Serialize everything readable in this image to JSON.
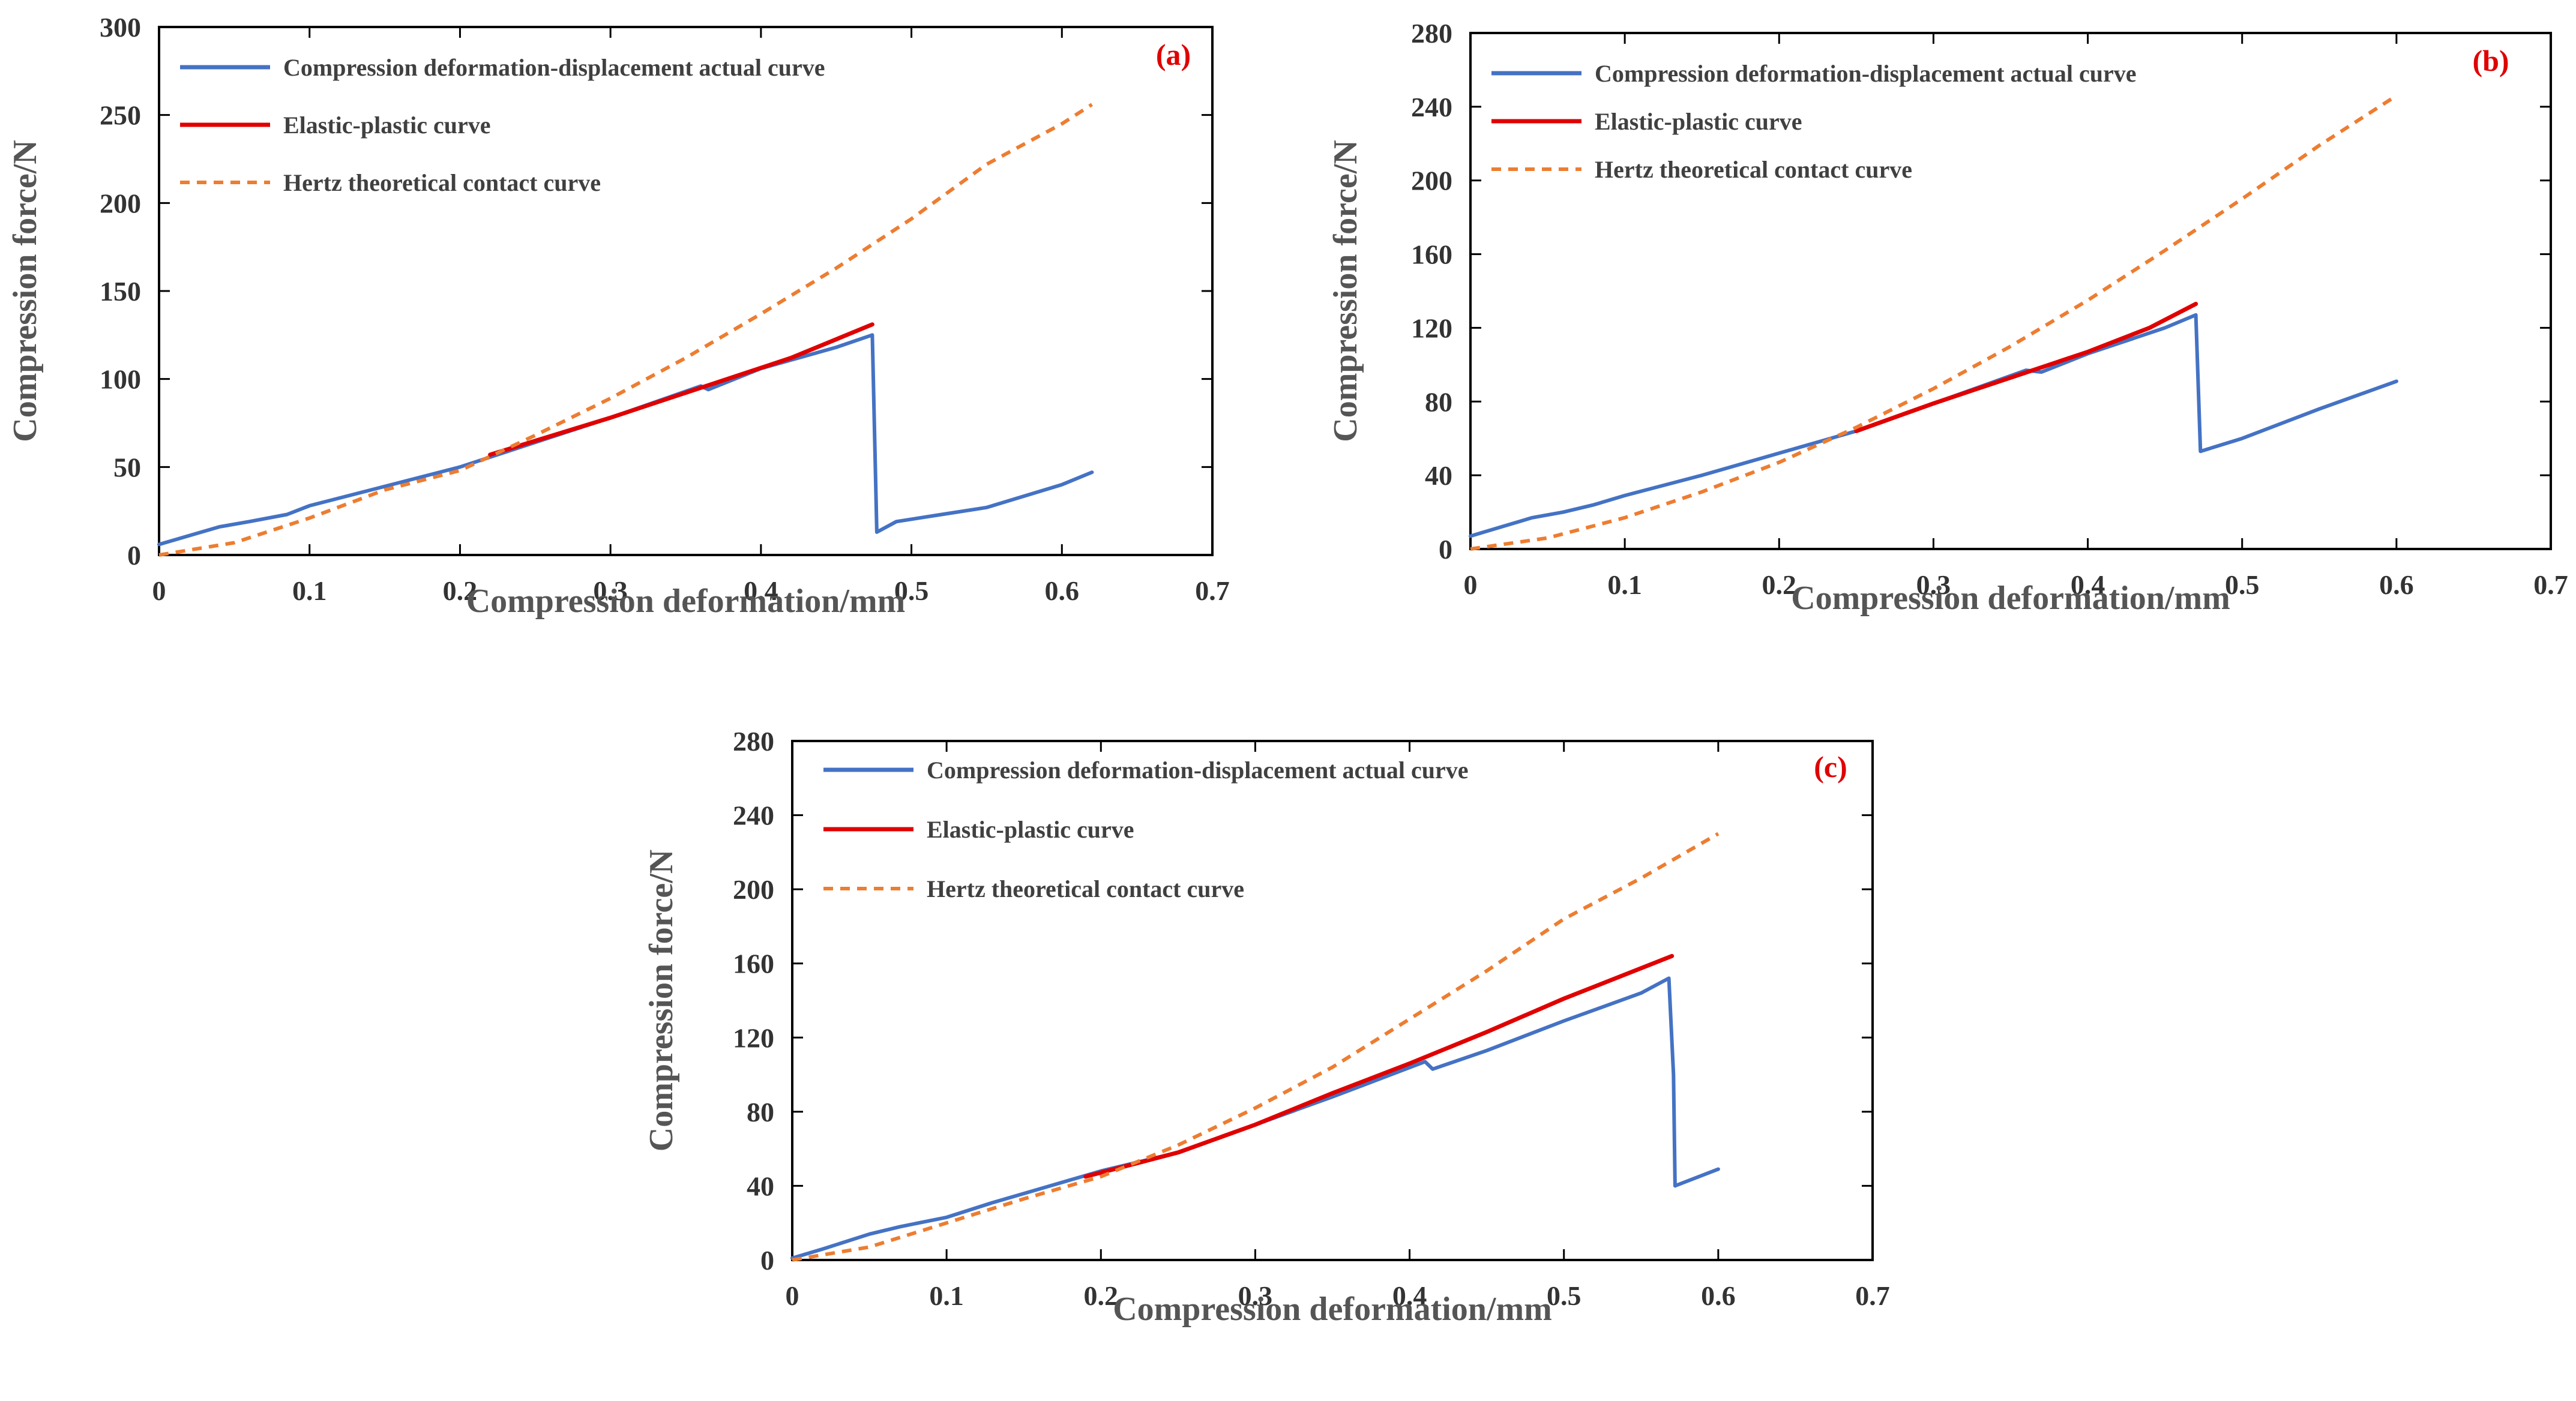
{
  "colors": {
    "actual": "#4472c4",
    "elastic_plastic": "#e00000",
    "hertz": "#ed7d31",
    "panel_label": "#e00000"
  },
  "chart_data": [
    {
      "type": "line",
      "panel": "(a)",
      "xlabel": "Compression deformation/mm",
      "ylabel": "Compression force/N",
      "xlim": [
        0,
        0.7
      ],
      "ylim": [
        0,
        300
      ],
      "xticks": [
        "0",
        "0.1",
        "0.2",
        "0.3",
        "0.4",
        "0.5",
        "0.6",
        "0.7"
      ],
      "yticks": [
        "0",
        "50",
        "100",
        "150",
        "200",
        "250",
        "300"
      ],
      "legend_position": "top-left",
      "series": [
        {
          "name": "Compression deformation-displacement actual curve",
          "style": "solid",
          "color_key": "actual",
          "points": [
            [
              0,
              6
            ],
            [
              0.02,
              11
            ],
            [
              0.04,
              16
            ],
            [
              0.06,
              19
            ],
            [
              0.085,
              23
            ],
            [
              0.1,
              28
            ],
            [
              0.15,
              39
            ],
            [
              0.2,
              50
            ],
            [
              0.25,
              64
            ],
            [
              0.3,
              78
            ],
            [
              0.36,
              96
            ],
            [
              0.365,
              94
            ],
            [
              0.4,
              106
            ],
            [
              0.45,
              118
            ],
            [
              0.474,
              125
            ],
            [
              0.477,
              13
            ],
            [
              0.49,
              19
            ],
            [
              0.52,
              23
            ],
            [
              0.55,
              27
            ],
            [
              0.6,
              40
            ],
            [
              0.62,
              47
            ]
          ]
        },
        {
          "name": "Elastic-plastic curve",
          "style": "solid",
          "color_key": "elastic_plastic",
          "points": [
            [
              0.22,
              57
            ],
            [
              0.3,
              78
            ],
            [
              0.36,
              95
            ],
            [
              0.42,
              112
            ],
            [
              0.474,
              131
            ]
          ]
        },
        {
          "name": "Hertz theoretical contact curve",
          "style": "dashed",
          "color_key": "hertz",
          "points": [
            [
              0,
              0
            ],
            [
              0.05,
              7
            ],
            [
              0.1,
              21
            ],
            [
              0.15,
              37
            ],
            [
              0.2,
              48
            ],
            [
              0.25,
              68
            ],
            [
              0.3,
              89
            ],
            [
              0.35,
              112
            ],
            [
              0.4,
              137
            ],
            [
              0.45,
              163
            ],
            [
              0.5,
              191
            ],
            [
              0.55,
              222
            ],
            [
              0.6,
              245
            ],
            [
              0.62,
              256
            ]
          ]
        }
      ]
    },
    {
      "type": "line",
      "panel": "(b)",
      "xlabel": "Compression deformation/mm",
      "ylabel": "Compression force/N",
      "xlim": [
        0,
        0.7
      ],
      "ylim": [
        0,
        280
      ],
      "xticks": [
        "0",
        "0.1",
        "0.2",
        "0.3",
        "0.4",
        "0.5",
        "0.6",
        "0.7"
      ],
      "yticks": [
        "0",
        "40",
        "80",
        "120",
        "160",
        "200",
        "240",
        "280"
      ],
      "legend_position": "top-left",
      "series": [
        {
          "name": "Compression deformation-displacement actual curve",
          "style": "solid",
          "color_key": "actual",
          "points": [
            [
              0,
              7
            ],
            [
              0.02,
              12
            ],
            [
              0.04,
              17
            ],
            [
              0.06,
              20
            ],
            [
              0.08,
              24
            ],
            [
              0.1,
              29
            ],
            [
              0.15,
              40
            ],
            [
              0.2,
              52
            ],
            [
              0.25,
              64
            ],
            [
              0.3,
              79
            ],
            [
              0.36,
              97
            ],
            [
              0.37,
              96
            ],
            [
              0.4,
              106
            ],
            [
              0.45,
              120
            ],
            [
              0.47,
              127
            ],
            [
              0.473,
              53
            ],
            [
              0.5,
              60
            ],
            [
              0.55,
              76
            ],
            [
              0.6,
              91
            ]
          ]
        },
        {
          "name": "Elastic-plastic curve",
          "style": "solid",
          "color_key": "elastic_plastic",
          "points": [
            [
              0.25,
              64
            ],
            [
              0.3,
              79
            ],
            [
              0.35,
              93
            ],
            [
              0.4,
              107
            ],
            [
              0.44,
              120
            ],
            [
              0.47,
              133
            ]
          ]
        },
        {
          "name": "Hertz theoretical contact curve",
          "style": "dashed",
          "color_key": "hertz",
          "points": [
            [
              0,
              0
            ],
            [
              0.05,
              6
            ],
            [
              0.1,
              17
            ],
            [
              0.15,
              31
            ],
            [
              0.2,
              47
            ],
            [
              0.25,
              66
            ],
            [
              0.3,
              87
            ],
            [
              0.35,
              110
            ],
            [
              0.4,
              135
            ],
            [
              0.45,
              162
            ],
            [
              0.5,
              190
            ],
            [
              0.55,
              219
            ],
            [
              0.6,
              246
            ]
          ]
        }
      ]
    },
    {
      "type": "line",
      "panel": "(c)",
      "xlabel": "Compression deformation/mm",
      "ylabel": "Compression force/N",
      "xlim": [
        0,
        0.7
      ],
      "ylim": [
        0,
        280
      ],
      "xticks": [
        "0",
        "0.1",
        "0.2",
        "0.3",
        "0.4",
        "0.5",
        "0.6",
        "0.7"
      ],
      "yticks": [
        "0",
        "40",
        "80",
        "120",
        "160",
        "200",
        "240",
        "280"
      ],
      "legend_position": "top-left",
      "series": [
        {
          "name": "Compression deformation-displacement actual curve",
          "style": "solid",
          "color_key": "actual",
          "points": [
            [
              0,
              1
            ],
            [
              0.02,
              6
            ],
            [
              0.05,
              14
            ],
            [
              0.07,
              18
            ],
            [
              0.1,
              23
            ],
            [
              0.13,
              31
            ],
            [
              0.2,
              48
            ],
            [
              0.25,
              58
            ],
            [
              0.3,
              73
            ],
            [
              0.35,
              88
            ],
            [
              0.41,
              107
            ],
            [
              0.415,
              103
            ],
            [
              0.45,
              113
            ],
            [
              0.5,
              129
            ],
            [
              0.55,
              144
            ],
            [
              0.568,
              152
            ],
            [
              0.571,
              100
            ],
            [
              0.572,
              40
            ],
            [
              0.6,
              49
            ]
          ]
        },
        {
          "name": "Elastic-plastic curve",
          "style": "solid",
          "color_key": "elastic_plastic",
          "points": [
            [
              0.19,
              45
            ],
            [
              0.25,
              58
            ],
            [
              0.3,
              73
            ],
            [
              0.35,
              90
            ],
            [
              0.4,
              106
            ],
            [
              0.45,
              123
            ],
            [
              0.5,
              141
            ],
            [
              0.57,
              164
            ]
          ]
        },
        {
          "name": "Hertz theoretical contact curve",
          "style": "dashed",
          "color_key": "hertz",
          "points": [
            [
              0,
              0
            ],
            [
              0.05,
              7
            ],
            [
              0.1,
              20
            ],
            [
              0.15,
              33
            ],
            [
              0.2,
              45
            ],
            [
              0.25,
              62
            ],
            [
              0.3,
              82
            ],
            [
              0.35,
              104
            ],
            [
              0.4,
              130
            ],
            [
              0.45,
              156
            ],
            [
              0.5,
              184
            ],
            [
              0.55,
              206
            ],
            [
              0.6,
              230
            ]
          ]
        }
      ]
    }
  ]
}
